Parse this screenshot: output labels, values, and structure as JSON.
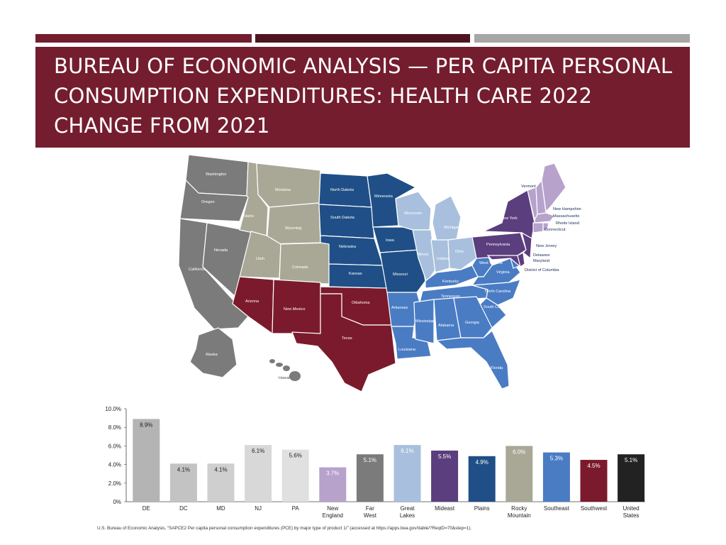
{
  "slide": {
    "title": "BUREAU OF ECONOMIC ANALYSIS — PER CAPITA PERSONAL CONSUMPTION EXPENDITURES: HEALTH CARE 2022 CHANGE FROM 2021",
    "source": "U.S. Bureau of Economic Analysis, “SAPCE2 Per capita personal consumption expenditures (PCE) by major type of product 1/” (accessed at https://apps.bea.gov/itable/?ReqID=70&step=1).",
    "accent_colors": [
      "#741d2e",
      "#4e1520",
      "#a6a6a6"
    ]
  },
  "map": {
    "region_colors": {
      "far_west": "#7b7b7b",
      "rocky_mountain": "#a9a896",
      "plains": "#1f4f86",
      "great_lakes": "#a8c0dd",
      "southeast": "#4a7cc4",
      "southwest": "#7b1a2c",
      "mideast": "#5b3e7d",
      "new_england": "#b7a2cc"
    },
    "labels": {
      "washington": "Washington",
      "oregon": "Oregon",
      "california": "California",
      "nevada": "Nevada",
      "idaho": "Idaho",
      "montana": "Montana",
      "wyoming": "Wyoming",
      "utah": "Utah",
      "colorado": "Colorado",
      "arizona": "Arizona",
      "new_mexico": "New Mexico",
      "north_dakota": "North Dakota",
      "south_dakota": "South Dakota",
      "nebraska": "Nebraska",
      "kansas": "Kansas",
      "minnesota": "Minnesota",
      "iowa": "Iowa",
      "missouri": "Missouri",
      "oklahoma": "Oklahoma",
      "texas": "Texas",
      "wisconsin": "Wisconsin",
      "michigan": "Michigan",
      "illinois": "Illinois",
      "indiana": "Indiana",
      "ohio": "Ohio",
      "kentucky": "Kentucky",
      "tennessee": "Tennessee",
      "arkansas": "Arkansas",
      "louisiana": "Louisiana",
      "mississippi": "Mississippi",
      "alabama": "Alabama",
      "georgia": "Georgia",
      "florida": "Florida",
      "south_carolina": "South Carolina",
      "north_carolina": "North Carolina",
      "virginia": "Virginia",
      "west_virginia": "West Virginia",
      "pennsylvania": "Pennsylvania",
      "new_york": "New York",
      "vermont": "Vermont",
      "new_hampshire": "New Hampshire",
      "massachusetts": "Massachusetts",
      "rhode_island": "Rhode Island",
      "connecticut": "Connecticut",
      "new_jersey": "New Jersey",
      "delaware": "Delaware",
      "maryland": "Maryland",
      "dc": "District of Columbia",
      "alaska": "Alaska",
      "hawaii": "Hawaii"
    }
  },
  "chart_data": {
    "type": "bar",
    "title": "",
    "xlabel": "",
    "ylabel": "",
    "ylim": [
      0,
      10
    ],
    "yticks": [
      "0%",
      "2.0%",
      "4.0%",
      "6.0%",
      "8.0%",
      "10.0%"
    ],
    "grid": false,
    "categories": [
      "DE",
      "DC",
      "MD",
      "NJ",
      "PA",
      "New England",
      "Far West",
      "Great Lakes",
      "Mideast",
      "Plains",
      "Rocky Mountain",
      "Southeast",
      "Southwest",
      "United States"
    ],
    "category_lines": [
      [
        "DE"
      ],
      [
        "DC"
      ],
      [
        "MD"
      ],
      [
        "NJ"
      ],
      [
        "PA"
      ],
      [
        "New",
        "England"
      ],
      [
        "Far",
        "West"
      ],
      [
        "Great",
        "Lakes"
      ],
      [
        "Mideast"
      ],
      [
        "Plains"
      ],
      [
        "Rocky",
        "Mountain"
      ],
      [
        "Southeast"
      ],
      [
        "Southwest"
      ],
      [
        "United",
        "States"
      ]
    ],
    "values": [
      8.9,
      4.1,
      4.1,
      6.1,
      5.6,
      3.7,
      5.1,
      6.1,
      5.5,
      4.9,
      6.0,
      5.3,
      4.5,
      5.1
    ],
    "labels": [
      "8.9%",
      "4.1%",
      "4.1%",
      "6.1%",
      "5.6%",
      "3.7%",
      "5.1%",
      "6.1%",
      "5.5%",
      "4.9%",
      "6.0%",
      "5.3%",
      "4.5%",
      "5.1%"
    ],
    "colors": [
      "#b4b4b4",
      "#c3c3c3",
      "#cfcfcf",
      "#d8d8d8",
      "#e0e0e0",
      "#b7a2cc",
      "#7b7b7b",
      "#a8c0dd",
      "#5b3e7d",
      "#1f4f86",
      "#a9a896",
      "#4a7cc4",
      "#7b1a2c",
      "#222222"
    ],
    "label_colors": [
      "#222222",
      "#222222",
      "#222222",
      "#222222",
      "#222222",
      "#ffffff",
      "#ffffff",
      "#ffffff",
      "#ffffff",
      "#ffffff",
      "#ffffff",
      "#ffffff",
      "#ffffff",
      "#ffffff"
    ]
  }
}
